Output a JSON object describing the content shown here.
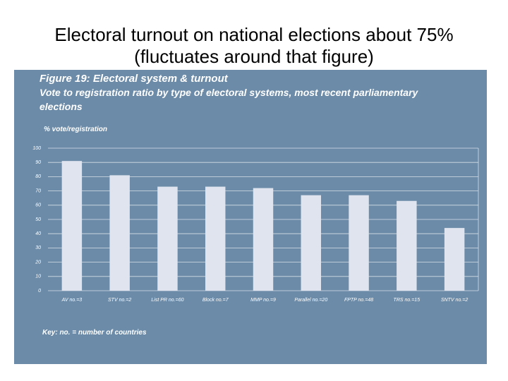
{
  "slide_title": "Electoral turnout on national elections about 75% (fluctuates around that figure)",
  "chart_data": {
    "type": "bar",
    "title": "Figure 19: Electoral system & turnout",
    "subtitle": "Vote to registration ratio by type of electoral systems, most recent parliamentary elections",
    "y_label": "% vote/registration",
    "key": "Key: no. = number of countries",
    "categories": [
      "AV no.=3",
      "STV no.=2",
      "List PR no.=60",
      "Block no.=7",
      "MMP no.=9",
      "Parallel no.=20",
      "FPTP no.=48",
      "TRS no.=15",
      "SNTV no.=2"
    ],
    "values": [
      91,
      81,
      73,
      73,
      72,
      67,
      67,
      63,
      44
    ],
    "color": "#dfe4ee",
    "ylim": [
      0,
      100
    ],
    "yticks": [
      0,
      10,
      20,
      30,
      40,
      50,
      60,
      70,
      80,
      90,
      100
    ],
    "grid": true
  }
}
